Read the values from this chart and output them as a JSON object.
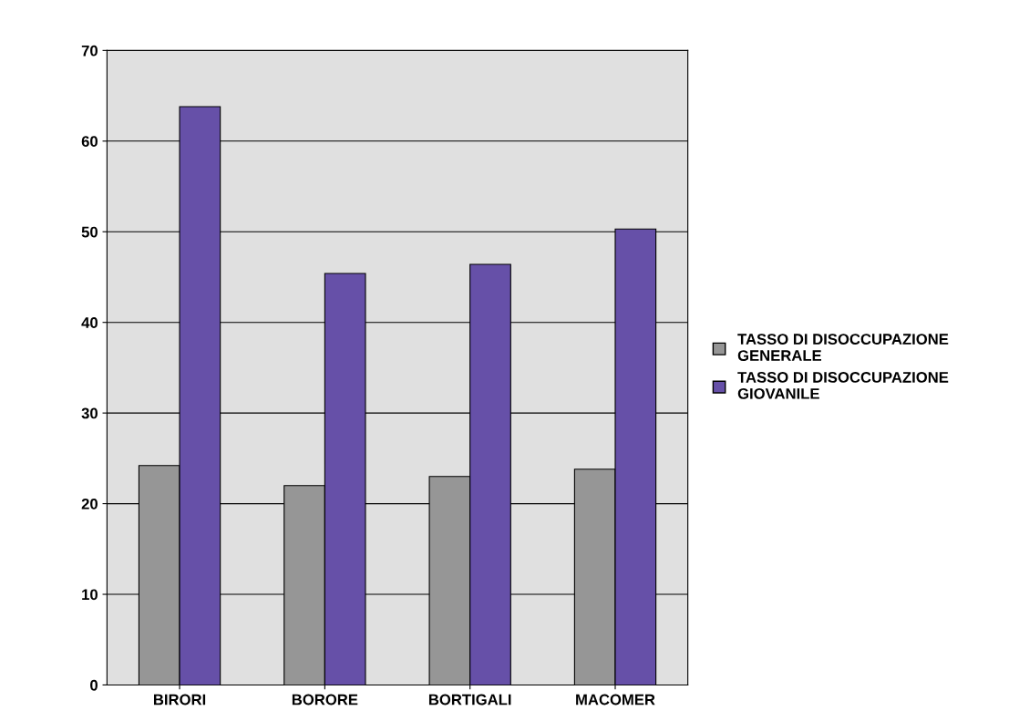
{
  "chart_data": {
    "type": "bar",
    "categories": [
      "BIRORI",
      "BORORE",
      "BORTIGALI",
      "MACOMER"
    ],
    "series": [
      {
        "name": "TASSO DI DISOCCUPAZIONE GENERALE",
        "color": "#969696",
        "values": [
          24.2,
          22.0,
          23.0,
          23.8
        ]
      },
      {
        "name": "TASSO DI DISOCCUPAZIONE GIOVANILE",
        "color": "#6650a8",
        "values": [
          63.8,
          45.4,
          46.4,
          50.3
        ]
      }
    ],
    "ylim": [
      0,
      70
    ],
    "yticks": [
      0,
      10,
      20,
      30,
      40,
      50,
      60,
      70
    ],
    "grid": "y",
    "legend": "right"
  }
}
